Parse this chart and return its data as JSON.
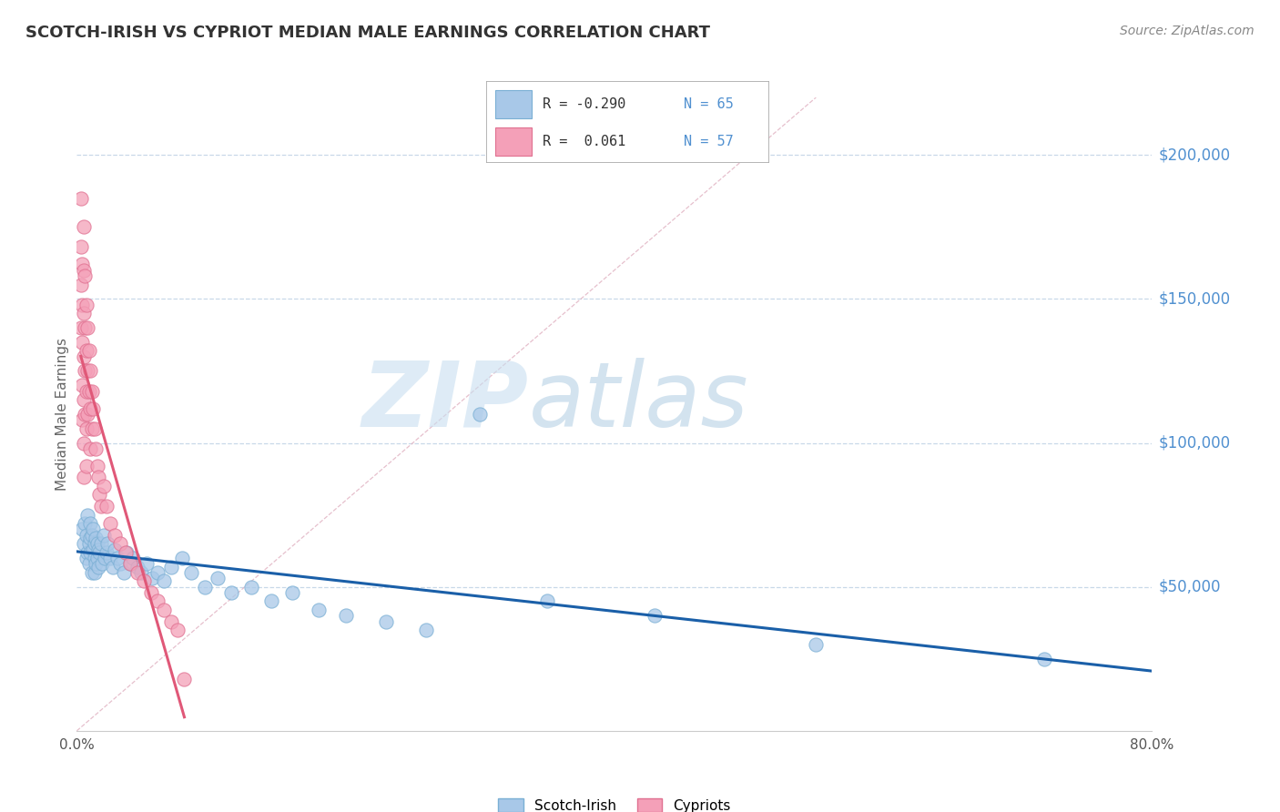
{
  "title": "SCOTCH-IRISH VS CYPRIOT MEDIAN MALE EARNINGS CORRELATION CHART",
  "source_text": "Source: ZipAtlas.com",
  "ylabel": "Median Male Earnings",
  "xlim": [
    0.0,
    0.8
  ],
  "ylim": [
    0,
    220000
  ],
  "yticks": [
    50000,
    100000,
    150000,
    200000
  ],
  "background_color": "#ffffff",
  "grid_color": "#c8d8e8",
  "watermark_zip": "ZIP",
  "watermark_atlas": "atlas",
  "scotch_irish_color": "#a8c8e8",
  "scotch_irish_edge": "#7aafd4",
  "cypriot_color": "#f4a0b8",
  "cypriot_edge": "#e07090",
  "scotch_irish_line_color": "#1a5fa8",
  "cypriot_line_color": "#e05878",
  "diag_line_color": "#d0a0b0",
  "tick_color": "#5090d0",
  "title_color": "#333333",
  "source_color": "#888888",
  "scotch_irish_x": [
    0.004,
    0.005,
    0.006,
    0.007,
    0.007,
    0.008,
    0.008,
    0.009,
    0.009,
    0.01,
    0.01,
    0.01,
    0.011,
    0.011,
    0.012,
    0.012,
    0.013,
    0.013,
    0.013,
    0.014,
    0.014,
    0.015,
    0.015,
    0.016,
    0.016,
    0.017,
    0.018,
    0.019,
    0.02,
    0.021,
    0.022,
    0.023,
    0.025,
    0.027,
    0.028,
    0.03,
    0.032,
    0.035,
    0.037,
    0.04,
    0.042,
    0.045,
    0.048,
    0.052,
    0.056,
    0.06,
    0.065,
    0.07,
    0.078,
    0.085,
    0.095,
    0.105,
    0.115,
    0.13,
    0.145,
    0.16,
    0.18,
    0.2,
    0.23,
    0.26,
    0.3,
    0.35,
    0.43,
    0.55,
    0.72
  ],
  "scotch_irish_y": [
    70000,
    65000,
    72000,
    68000,
    60000,
    75000,
    62000,
    65000,
    58000,
    72000,
    67000,
    62000,
    68000,
    55000,
    70000,
    63000,
    65000,
    60000,
    55000,
    67000,
    58000,
    65000,
    60000,
    63000,
    57000,
    62000,
    65000,
    58000,
    68000,
    60000,
    62000,
    65000,
    60000,
    57000,
    63000,
    60000,
    58000,
    55000,
    62000,
    58000,
    60000,
    57000,
    55000,
    58000,
    53000,
    55000,
    52000,
    57000,
    60000,
    55000,
    50000,
    53000,
    48000,
    50000,
    45000,
    48000,
    42000,
    40000,
    38000,
    35000,
    110000,
    45000,
    40000,
    30000,
    25000
  ],
  "cypriot_x": [
    0.003,
    0.003,
    0.003,
    0.003,
    0.004,
    0.004,
    0.004,
    0.004,
    0.004,
    0.005,
    0.005,
    0.005,
    0.005,
    0.005,
    0.005,
    0.005,
    0.006,
    0.006,
    0.006,
    0.006,
    0.007,
    0.007,
    0.007,
    0.007,
    0.007,
    0.008,
    0.008,
    0.008,
    0.009,
    0.009,
    0.01,
    0.01,
    0.01,
    0.011,
    0.011,
    0.012,
    0.013,
    0.014,
    0.015,
    0.016,
    0.017,
    0.018,
    0.02,
    0.022,
    0.025,
    0.028,
    0.032,
    0.036,
    0.04,
    0.045,
    0.05,
    0.055,
    0.06,
    0.065,
    0.07,
    0.075,
    0.08
  ],
  "cypriot_y": [
    185000,
    168000,
    155000,
    140000,
    162000,
    148000,
    135000,
    120000,
    108000,
    175000,
    160000,
    145000,
    130000,
    115000,
    100000,
    88000,
    158000,
    140000,
    125000,
    110000,
    148000,
    132000,
    118000,
    105000,
    92000,
    140000,
    125000,
    110000,
    132000,
    118000,
    125000,
    112000,
    98000,
    118000,
    105000,
    112000,
    105000,
    98000,
    92000,
    88000,
    82000,
    78000,
    85000,
    78000,
    72000,
    68000,
    65000,
    62000,
    58000,
    55000,
    52000,
    48000,
    45000,
    42000,
    38000,
    35000,
    18000
  ]
}
